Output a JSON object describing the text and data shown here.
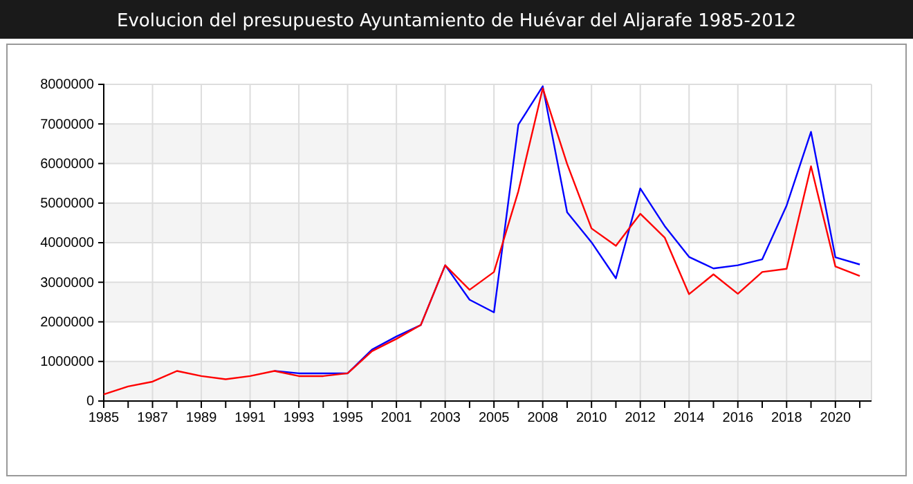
{
  "chart_data": {
    "type": "line",
    "title": "Evolucion del presupuesto Ayuntamiento de Huévar del Aljarafe 1985-2012",
    "categories": [
      "1985",
      null,
      "1987",
      null,
      "1989",
      null,
      "1991",
      null,
      "1993",
      null,
      "1995",
      null,
      "2001",
      null,
      "2003",
      null,
      "2005",
      null,
      "2008",
      null,
      "2010",
      null,
      "2012",
      null,
      "2014",
      null,
      "2016",
      null,
      "2018",
      null,
      "2020",
      null
    ],
    "series": [
      {
        "color": "#0000ff",
        "values": [
          null,
          null,
          null,
          null,
          null,
          null,
          null,
          760000,
          700000,
          700000,
          700000,
          1300000,
          1630000,
          1920000,
          3430000,
          2560000,
          2240000,
          6980000,
          7950000,
          4770000,
          4010000,
          3100000,
          5370000,
          4420000,
          3640000,
          3350000,
          3430000,
          3580000,
          4940000,
          6800000,
          3630000,
          3450000
        ]
      },
      {
        "color": "#ff0000",
        "values": [
          170000,
          370000,
          490000,
          760000,
          630000,
          550000,
          630000,
          760000,
          630000,
          630000,
          700000,
          1260000,
          1570000,
          1920000,
          3430000,
          2810000,
          3260000,
          5300000,
          7900000,
          5990000,
          4360000,
          3920000,
          4730000,
          4130000,
          2700000,
          3200000,
          2710000,
          3260000,
          3340000,
          5930000,
          3400000,
          3160000
        ]
      }
    ],
    "ylim": [
      0,
      8000000
    ],
    "yticks": [
      0,
      1000000,
      2000000,
      3000000,
      4000000,
      5000000,
      6000000,
      7000000,
      8000000
    ],
    "grid": true,
    "marker": "none",
    "line_style": "solid"
  }
}
